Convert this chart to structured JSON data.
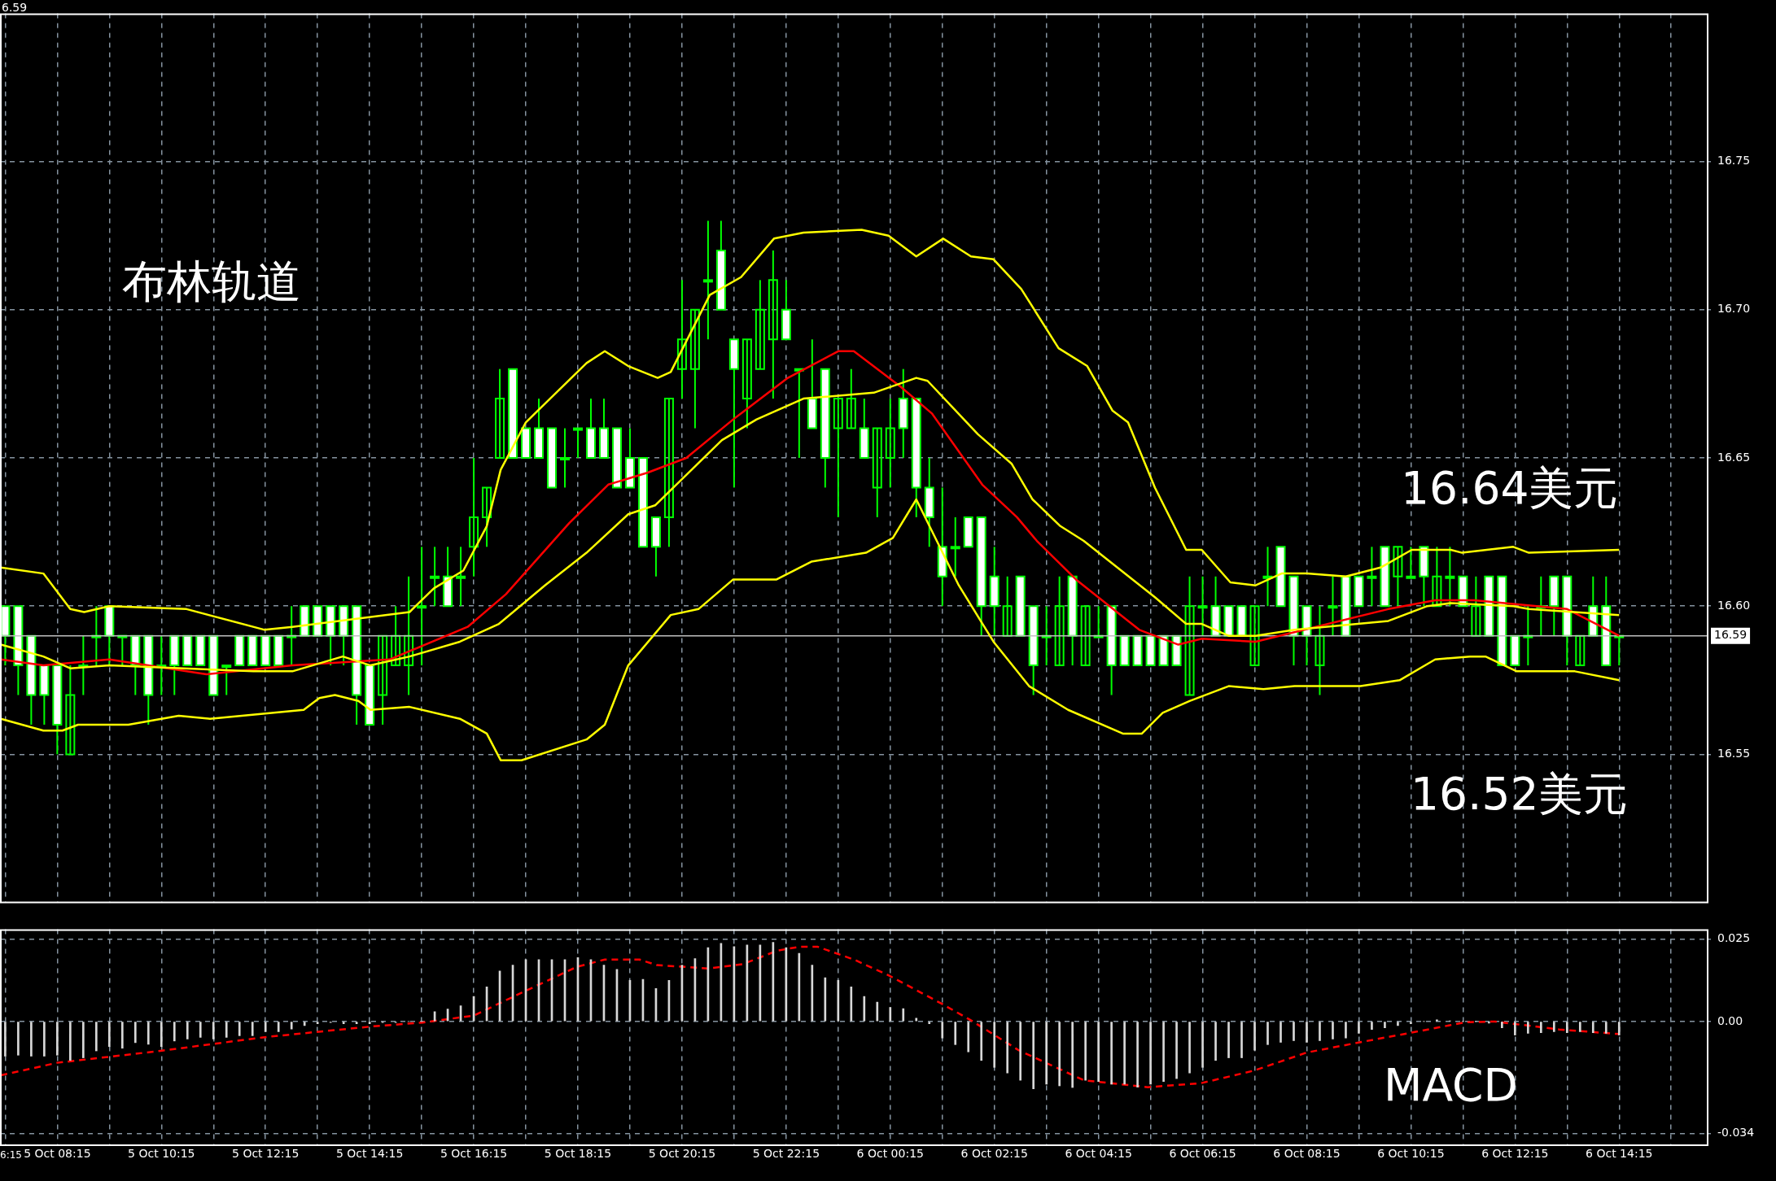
{
  "chart_data": [
    {
      "type": "candlestick",
      "color": "#00ff00",
      "colors": [
        "#ffffff",
        "#ffffff",
        "#ffffff",
        "#ffffff",
        "#ffffff",
        "#00ff00",
        "#00ff00",
        "#00ff00",
        "#ffffff",
        "#00ff00",
        "#ffffff",
        "#ffffff",
        "#00ff00",
        "#ffffff",
        "#ffffff",
        "#ffffff",
        "#ffffff",
        "#00ff00",
        "#ffffff",
        "#ffffff",
        "#ffffff",
        "#ffffff",
        "#00ff00",
        "#ffffff",
        "#ffffff",
        "#ffffff",
        "#ffffff",
        "#ffffff",
        "#ffffff",
        "#00ff00",
        "#00ff00",
        "#00ff00",
        "#00ff00",
        "#00ff00",
        "#ffffff",
        "#00ff00",
        "#00ff00",
        "#00ff00",
        "#00ff00",
        "#ffffff",
        "#ffffff",
        "#ffffff",
        "#ffffff",
        "#00ff00",
        "#00ff00",
        "#ffffff",
        "#ffffff",
        "#ffffff",
        "#ffffff",
        "#ffffff",
        "#ffffff",
        "#00ff00",
        "#00ff00",
        "#00ff00",
        "#00ff00",
        "#ffffff",
        "#ffffff",
        "#00ff00",
        "#00ff00",
        "#00ff00",
        "#ffffff",
        "#00ff00",
        "#ffffff",
        "#ffffff",
        "#00ff00",
        "#00ff00",
        "#ffffff",
        "#00ff00",
        "#00ff00",
        "#ffffff",
        "#ffffff",
        "#ffffff",
        "#ffffff",
        "#00ff00",
        "#ffffff",
        "#ffffff",
        "#ffffff",
        "#00ff00",
        "#ffffff",
        "#ffffff",
        "#00ff00",
        "#00ff00",
        "#ffffff",
        "#00ff00",
        "#00ff00",
        "#ffffff",
        "#ffffff",
        "#ffffff",
        "#ffffff",
        "#ffffff",
        "#ffffff",
        "#00ff00",
        "#00ff00",
        "#ffffff",
        "#ffffff",
        "#ffffff",
        "#00ff00",
        "#00ff00",
        "#ffffff",
        "#ffffff",
        "#ffffff",
        "#00ff00",
        "#00ff00",
        "#ffffff",
        "#ffffff",
        "#00ff00",
        "#ffffff",
        "#00ff00",
        "#00ff00",
        "#ffffff",
        "#00ff00",
        "#00ff00",
        "#ffffff",
        "#00ff00",
        "#ffffff",
        "#ffffff",
        "#ffffff",
        "#00ff00",
        "#00ff00",
        "#ffffff",
        "#ffffff",
        "#00ff00",
        "#ffffff",
        "#ffffff",
        "#00ff00"
      ],
      "tick_labels": "y",
      "grid": true,
      "xlim": [
        "--10-05T07:09",
        "--10-06T15:57"
      ],
      "xticks": [
        {
          "value": "--10-05T07:15",
          "label": null
        },
        {
          "value": "--10-05T08:15",
          "label": null
        },
        {
          "value": "--10-05T09:15",
          "label": null
        },
        {
          "value": "--10-05T10:15",
          "label": null
        },
        {
          "value": "--10-05T11:15",
          "label": null
        },
        {
          "value": "--10-05T12:15",
          "label": null
        },
        {
          "value": "--10-05T13:15",
          "label": null
        },
        {
          "value": "--10-05T14:15",
          "label": null
        },
        {
          "value": "--10-05T15:15",
          "label": null
        },
        {
          "value": "--10-05T16:15",
          "label": null
        },
        {
          "value": "--10-05T17:15",
          "label": null
        },
        {
          "value": "--10-05T18:15",
          "label": null
        },
        {
          "value": "--10-05T19:15",
          "label": null
        },
        {
          "value": "--10-05T20:15",
          "label": null
        },
        {
          "value": "--10-05T21:15",
          "label": null
        },
        {
          "value": "--10-05T22:15",
          "label": null
        },
        {
          "value": "--10-05T23:15",
          "label": null
        },
        {
          "value": "--10-06T00:15",
          "label": null
        },
        {
          "value": "--10-06T01:15",
          "label": null
        },
        {
          "value": "--10-06T02:15",
          "label": null
        },
        {
          "value": "--10-06T03:15",
          "label": null
        },
        {
          "value": "--10-06T04:15",
          "label": null
        },
        {
          "value": "--10-06T05:15",
          "label": null
        },
        {
          "value": "--10-06T06:15",
          "label": null
        },
        {
          "value": "--10-06T07:15",
          "label": null
        },
        {
          "value": "--10-06T08:15",
          "label": null
        },
        {
          "value": "--10-06T09:15",
          "label": null
        },
        {
          "value": "--10-06T10:15",
          "label": null
        },
        {
          "value": "--10-06T11:15",
          "label": null
        },
        {
          "value": "--10-06T12:15",
          "label": null
        },
        {
          "value": "--10-06T13:15",
          "label": null
        },
        {
          "value": "--10-06T14:15",
          "label": null
        },
        {
          "value": "--10-06T15:15",
          "label": null
        }
      ],
      "ylim": [
        16.5,
        16.8
      ],
      "yticks": [
        16.55,
        {
          "value": 16.6,
          "label": "16.60"
        },
        16.65,
        {
          "value": 16.7,
          "label": "16.70"
        },
        16.75
      ],
      "ref_lines": [
        {
          "axis": "y",
          "value": 16.59,
          "label": "16.59",
          "color": "#c0c0c0"
        }
      ],
      "annotations": [
        "布林轨道",
        "16.64美元",
        "16.52美元",
        "6.59"
      ],
      "x": [
        "--10-05T07:15",
        "--10-05T07:30",
        "--10-05T07:45",
        "--10-05T08:00",
        "--10-05T08:15",
        "--10-05T08:30",
        "--10-05T08:45",
        "--10-05T09:00",
        "--10-05T09:15",
        "--10-05T09:30",
        "--10-05T09:45",
        "--10-05T10:00",
        "--10-05T10:15",
        "--10-05T10:30",
        "--10-05T10:45",
        "--10-05T11:00",
        "--10-05T11:15",
        "--10-05T11:30",
        "--10-05T11:45",
        "--10-05T12:00",
        "--10-05T12:15",
        "--10-05T12:30",
        "--10-05T12:45",
        "--10-05T13:00",
        "--10-05T13:15",
        "--10-05T13:30",
        "--10-05T13:45",
        "--10-05T14:00",
        "--10-05T14:15",
        "--10-05T14:30",
        "--10-05T14:45",
        "--10-05T15:00",
        "--10-05T15:15",
        "--10-05T15:30",
        "--10-05T15:45",
        "--10-05T16:00",
        "--10-05T16:15",
        "--10-05T16:30",
        "--10-05T16:45",
        "--10-05T17:00",
        "--10-05T17:15",
        "--10-05T17:30",
        "--10-05T17:45",
        "--10-05T18:00",
        "--10-05T18:15",
        "--10-05T18:30",
        "--10-05T18:45",
        "--10-05T19:00",
        "--10-05T19:15",
        "--10-05T19:30",
        "--10-05T19:45",
        "--10-05T20:00",
        "--10-05T20:15",
        "--10-05T20:30",
        "--10-05T20:45",
        "--10-05T21:00",
        "--10-05T21:15",
        "--10-05T21:30",
        "--10-05T21:45",
        "--10-05T22:00",
        "--10-05T22:15",
        "--10-05T22:30",
        "--10-05T22:45",
        "--10-05T23:00",
        "--10-05T23:15",
        "--10-05T23:30",
        "--10-05T23:45",
        "--10-06T00:00",
        "--10-06T00:15",
        "--10-06T00:30",
        "--10-06T00:45",
        "--10-06T01:00",
        "--10-06T01:15",
        "--10-06T01:30",
        "--10-06T01:45",
        "--10-06T02:00",
        "--10-06T02:15",
        "--10-06T02:30",
        "--10-06T02:45",
        "--10-06T03:00",
        "--10-06T03:15",
        "--10-06T03:30",
        "--10-06T03:45",
        "--10-06T04:00",
        "--10-06T04:15",
        "--10-06T04:30",
        "--10-06T04:45",
        "--10-06T05:00",
        "--10-06T05:15",
        "--10-06T05:30",
        "--10-06T05:45",
        "--10-06T06:00",
        "--10-06T06:15",
        "--10-06T06:30",
        "--10-06T06:45",
        "--10-06T07:00",
        "--10-06T07:15",
        "--10-06T07:30",
        "--10-06T07:45",
        "--10-06T08:00",
        "--10-06T08:15",
        "--10-06T08:30",
        "--10-06T08:45",
        "--10-06T09:00",
        "--10-06T09:15",
        "--10-06T09:30",
        "--10-06T09:45",
        "--10-06T10:00",
        "--10-06T10:15",
        "--10-06T10:30",
        "--10-06T10:45",
        "--10-06T11:00",
        "--10-06T11:15",
        "--10-06T11:30",
        "--10-06T11:45",
        "--10-06T12:00",
        "--10-06T12:15",
        "--10-06T12:30",
        "--10-06T12:45",
        "--10-06T13:00",
        "--10-06T13:15",
        "--10-06T13:30",
        "--10-06T13:45",
        "--10-06T14:00",
        "--10-06T14:15"
      ],
      "ohlc": [
        [
          16.6,
          16.6,
          16.58,
          16.59
        ],
        [
          16.6,
          16.6,
          16.57,
          16.58
        ],
        [
          16.59,
          16.59,
          16.56,
          16.57
        ],
        [
          16.58,
          16.58,
          16.56,
          16.57
        ],
        [
          16.58,
          16.58,
          16.55,
          16.56
        ],
        [
          16.55,
          16.58,
          16.55,
          16.57
        ],
        [
          16.58,
          16.59,
          16.57,
          16.58
        ],
        [
          16.59,
          16.6,
          16.58,
          16.59
        ],
        [
          16.6,
          16.6,
          16.58,
          16.59
        ],
        [
          16.59,
          16.59,
          16.58,
          16.59
        ],
        [
          16.59,
          16.59,
          16.57,
          16.58
        ],
        [
          16.59,
          16.59,
          16.56,
          16.57
        ],
        [
          16.58,
          16.59,
          16.57,
          16.58
        ],
        [
          16.59,
          16.59,
          16.57,
          16.58
        ],
        [
          16.59,
          16.59,
          16.58,
          16.58
        ],
        [
          16.59,
          16.59,
          16.58,
          16.58
        ],
        [
          16.59,
          16.59,
          16.57,
          16.57
        ],
        [
          16.58,
          16.58,
          16.57,
          16.58
        ],
        [
          16.59,
          16.59,
          16.58,
          16.58
        ],
        [
          16.59,
          16.59,
          16.58,
          16.58
        ],
        [
          16.59,
          16.59,
          16.58,
          16.58
        ],
        [
          16.59,
          16.59,
          16.58,
          16.58
        ],
        [
          16.59,
          16.6,
          16.58,
          16.59
        ],
        [
          16.6,
          16.6,
          16.59,
          16.59
        ],
        [
          16.6,
          16.6,
          16.59,
          16.59
        ],
        [
          16.6,
          16.6,
          16.58,
          16.59
        ],
        [
          16.6,
          16.6,
          16.58,
          16.59
        ],
        [
          16.6,
          16.6,
          16.56,
          16.57
        ],
        [
          16.58,
          16.58,
          16.56,
          16.56
        ],
        [
          16.57,
          16.59,
          16.56,
          16.59
        ],
        [
          16.58,
          16.6,
          16.58,
          16.59
        ],
        [
          16.58,
          16.61,
          16.57,
          16.59
        ],
        [
          16.6,
          16.62,
          16.58,
          16.6
        ],
        [
          16.61,
          16.62,
          16.6,
          16.61
        ],
        [
          16.61,
          16.62,
          16.6,
          16.6
        ],
        [
          16.61,
          16.62,
          16.6,
          16.61
        ],
        [
          16.62,
          16.65,
          16.61,
          16.63
        ],
        [
          16.63,
          16.64,
          16.62,
          16.64
        ],
        [
          16.65,
          16.68,
          16.65,
          16.67
        ],
        [
          16.68,
          16.68,
          16.65,
          16.65
        ],
        [
          16.66,
          16.66,
          16.65,
          16.65
        ],
        [
          16.66,
          16.67,
          16.65,
          16.65
        ],
        [
          16.66,
          16.66,
          16.64,
          16.64
        ],
        [
          16.65,
          16.66,
          16.64,
          16.65
        ],
        [
          16.66,
          16.66,
          16.65,
          16.66
        ],
        [
          16.66,
          16.67,
          16.65,
          16.65
        ],
        [
          16.66,
          16.67,
          16.65,
          16.65
        ],
        [
          16.66,
          16.66,
          16.64,
          16.64
        ],
        [
          16.65,
          16.66,
          16.64,
          16.64
        ],
        [
          16.65,
          16.65,
          16.62,
          16.62
        ],
        [
          16.63,
          16.63,
          16.61,
          16.62
        ],
        [
          16.63,
          16.67,
          16.62,
          16.67
        ],
        [
          16.68,
          16.71,
          16.67,
          16.69
        ],
        [
          16.68,
          16.7,
          16.66,
          16.7
        ],
        [
          16.71,
          16.73,
          16.69,
          16.71
        ],
        [
          16.72,
          16.73,
          16.7,
          16.7
        ],
        [
          16.69,
          16.69,
          16.64,
          16.68
        ],
        [
          16.67,
          16.69,
          16.66,
          16.69
        ],
        [
          16.68,
          16.71,
          16.68,
          16.7
        ],
        [
          16.69,
          16.72,
          16.67,
          16.71
        ],
        [
          16.7,
          16.71,
          16.69,
          16.69
        ],
        [
          16.68,
          16.68,
          16.65,
          16.68
        ],
        [
          16.67,
          16.69,
          16.66,
          16.66
        ],
        [
          16.68,
          16.68,
          16.64,
          16.65
        ],
        [
          16.66,
          16.67,
          16.63,
          16.67
        ],
        [
          16.66,
          16.68,
          16.66,
          16.67
        ],
        [
          16.66,
          16.67,
          16.65,
          16.65
        ],
        [
          16.64,
          16.66,
          16.63,
          16.66
        ],
        [
          16.65,
          16.67,
          16.64,
          16.66
        ],
        [
          16.67,
          16.68,
          16.65,
          16.66
        ],
        [
          16.67,
          16.67,
          16.63,
          16.64
        ],
        [
          16.64,
          16.65,
          16.62,
          16.63
        ],
        [
          16.62,
          16.64,
          16.6,
          16.61
        ],
        [
          16.62,
          16.63,
          16.61,
          16.62
        ],
        [
          16.63,
          16.63,
          16.62,
          16.62
        ],
        [
          16.63,
          16.63,
          16.59,
          16.6
        ],
        [
          16.61,
          16.62,
          16.59,
          16.6
        ],
        [
          16.59,
          16.61,
          16.59,
          16.6
        ],
        [
          16.61,
          16.61,
          16.59,
          16.59
        ],
        [
          16.6,
          16.6,
          16.57,
          16.58
        ],
        [
          16.59,
          16.6,
          16.58,
          16.59
        ],
        [
          16.58,
          16.61,
          16.58,
          16.6
        ],
        [
          16.61,
          16.61,
          16.58,
          16.59
        ],
        [
          16.58,
          16.6,
          16.58,
          16.6
        ],
        [
          16.59,
          16.6,
          16.59,
          16.59
        ],
        [
          16.6,
          16.6,
          16.57,
          16.58
        ],
        [
          16.59,
          16.59,
          16.58,
          16.58
        ],
        [
          16.59,
          16.59,
          16.58,
          16.58
        ],
        [
          16.59,
          16.59,
          16.58,
          16.58
        ],
        [
          16.59,
          16.59,
          16.58,
          16.58
        ],
        [
          16.59,
          16.59,
          16.58,
          16.58
        ],
        [
          16.57,
          16.61,
          16.57,
          16.6
        ],
        [
          16.6,
          16.61,
          16.59,
          16.6
        ],
        [
          16.6,
          16.61,
          16.59,
          16.59
        ],
        [
          16.6,
          16.6,
          16.59,
          16.59
        ],
        [
          16.6,
          16.6,
          16.59,
          16.59
        ],
        [
          16.58,
          16.6,
          16.58,
          16.6
        ],
        [
          16.61,
          16.62,
          16.6,
          16.61
        ],
        [
          16.62,
          16.62,
          16.6,
          16.6
        ],
        [
          16.61,
          16.61,
          16.58,
          16.59
        ],
        [
          16.6,
          16.6,
          16.58,
          16.59
        ],
        [
          16.58,
          16.6,
          16.57,
          16.59
        ],
        [
          16.6,
          16.61,
          16.59,
          16.6
        ],
        [
          16.61,
          16.61,
          16.59,
          16.59
        ],
        [
          16.61,
          16.61,
          16.6,
          16.6
        ],
        [
          16.61,
          16.62,
          16.6,
          16.61
        ],
        [
          16.62,
          16.62,
          16.6,
          16.6
        ],
        [
          16.61,
          16.62,
          16.6,
          16.62
        ],
        [
          16.61,
          16.62,
          16.61,
          16.61
        ],
        [
          16.62,
          16.62,
          16.6,
          16.61
        ],
        [
          16.6,
          16.62,
          16.6,
          16.61
        ],
        [
          16.61,
          16.62,
          16.6,
          16.61
        ],
        [
          16.61,
          16.61,
          16.6,
          16.6
        ],
        [
          16.59,
          16.61,
          16.59,
          16.6
        ],
        [
          16.61,
          16.61,
          16.59,
          16.59
        ],
        [
          16.61,
          16.61,
          16.58,
          16.58
        ],
        [
          16.59,
          16.59,
          16.58,
          16.58
        ],
        [
          16.59,
          16.6,
          16.58,
          16.59
        ],
        [
          16.6,
          16.61,
          16.59,
          16.6
        ],
        [
          16.61,
          16.61,
          16.59,
          16.6
        ],
        [
          16.61,
          16.61,
          16.58,
          16.59
        ],
        [
          16.58,
          16.59,
          16.58,
          16.59
        ],
        [
          16.6,
          16.61,
          16.59,
          16.59
        ],
        [
          16.6,
          16.61,
          16.58,
          16.58
        ],
        [
          16.59,
          16.59,
          16.58,
          16.59
        ]
      ],
      "series": [
        {
          "type": "line",
          "color": "#ffff00",
          "x": [
            "--10-05T07:10",
            "--10-05T07:59",
            "--10-05T08:30",
            "--10-05T08:46",
            "--10-05T09:15",
            "--10-05T10:44",
            "--10-05T12:14",
            "--10-05T12:46",
            "--10-05T15:01",
            "--10-05T15:29",
            "--10-05T16:03",
            "--10-05T16:30",
            "--10-05T16:46",
            "--10-05T17:15",
            "--10-05T18:25",
            "--10-05T18:46",
            "--10-05T19:13",
            "--10-05T19:47",
            "--10-05T20:02",
            "--10-05T20:47",
            "--10-05T21:23",
            "--10-05T22:01",
            "--10-05T22:35",
            "--10-05T23:42",
            "--10-06T00:13",
            "--10-06T00:45",
            "--10-06T01:16",
            "--10-06T01:48",
            "--10-06T02:14",
            "--10-06T02:46",
            "--10-06T03:29",
            "--10-06T04:02",
            "--10-06T04:31",
            "--10-06T04:49",
            "--10-06T05:20",
            "--10-06T05:56",
            "--10-06T06:14",
            "--10-06T06:47",
            "--10-06T07:16",
            "--10-06T07:46",
            "--10-06T08:15",
            "--10-06T09:00",
            "--10-06T09:40",
            "--10-06T10:16",
            "--10-06T11:01",
            "--10-06T11:14",
            "--10-06T12:13",
            "--10-06T12:31",
            "--10-06T14:15"
          ],
          "values": [
            16.613,
            16.611,
            16.599,
            16.598,
            16.6,
            16.599,
            16.592,
            16.593,
            16.598,
            16.606,
            16.612,
            16.627,
            16.646,
            16.662,
            16.682,
            16.686,
            16.681,
            16.677,
            16.679,
            16.705,
            16.711,
            16.724,
            16.726,
            16.727,
            16.725,
            16.718,
            16.724,
            16.718,
            16.717,
            16.707,
            16.687,
            16.681,
            16.666,
            16.662,
            16.64,
            16.619,
            16.619,
            16.608,
            16.607,
            16.611,
            16.611,
            16.61,
            16.613,
            16.619,
            16.619,
            16.618,
            16.62,
            16.618,
            16.619
          ]
        },
        {
          "type": "line",
          "color": "#ffff00",
          "x": [
            "--10-05T07:10",
            "--10-05T07:59",
            "--10-05T08:30",
            "--10-05T09:15",
            "--10-05T12:01",
            "--10-05T12:46",
            "--10-05T13:44",
            "--10-05T14:16",
            "--10-05T15:01",
            "--10-05T15:59",
            "--10-05T16:44",
            "--10-05T17:37",
            "--10-05T18:25",
            "--10-05T19:13",
            "--10-05T19:44",
            "--10-05T21:01",
            "--10-05T21:41",
            "--10-05T22:35",
            "--10-05T23:56",
            "--10-06T00:45",
            "--10-06T00:58",
            "--10-06T01:56",
            "--10-06T02:35",
            "--10-06T02:59",
            "--10-06T03:31",
            "--10-06T03:58",
            "--10-06T05:20",
            "--10-06T05:56",
            "--10-06T06:14",
            "--10-06T06:45",
            "--10-06T07:16",
            "--10-06T08:01",
            "--10-06T09:49",
            "--10-06T10:34",
            "--10-06T11:01",
            "--10-06T12:13",
            "--10-06T12:31",
            "--10-06T14:15"
          ],
          "values": [
            16.587,
            16.583,
            16.579,
            16.58,
            16.578,
            16.578,
            16.583,
            16.58,
            16.583,
            16.588,
            16.594,
            16.607,
            16.618,
            16.631,
            16.634,
            16.656,
            16.663,
            16.67,
            16.672,
            16.677,
            16.676,
            16.658,
            16.648,
            16.636,
            16.627,
            16.622,
            16.603,
            16.594,
            16.594,
            16.59,
            16.59,
            16.592,
            16.595,
            16.6,
            16.601,
            16.6,
            16.599,
            16.597
          ]
        },
        {
          "type": "line",
          "color": "#ffff00",
          "x": [
            "--10-05T07:10",
            "--10-05T07:59",
            "--10-05T08:21",
            "--10-05T08:39",
            "--10-05T09:37",
            "--10-05T10:35",
            "--10-05T11:11",
            "--10-05T12:59",
            "--10-05T13:17",
            "--10-05T13:35",
            "--10-05T14:02",
            "--10-05T14:16",
            "--10-05T15:01",
            "--10-05T15:59",
            "--10-05T16:30",
            "--10-05T16:46",
            "--10-05T17:10",
            "--10-05T18:25",
            "--10-05T18:46",
            "--10-05T19:13",
            "--10-05T20:02",
            "--10-05T20:34",
            "--10-05T21:14",
            "--10-05T22:04",
            "--10-05T22:44",
            "--10-05T23:47",
            "--10-06T00:18",
            "--10-06T00:45",
            "--10-06T01:34",
            "--10-06T02:14",
            "--10-06T02:55",
            "--10-06T03:40",
            "--10-06T04:43",
            "--10-06T05:05",
            "--10-06T05:29",
            "--10-06T06:00",
            "--10-06T06:45",
            "--10-06T07:25",
            "--10-06T08:01",
            "--10-06T09:17",
            "--10-06T10:02",
            "--10-06T10:43",
            "--10-06T11:23",
            "--10-06T11:41",
            "--10-06T12:17",
            "--10-06T12:57",
            "--10-06T13:24",
            "--10-06T14:15"
          ],
          "values": [
            16.562,
            16.558,
            16.558,
            16.56,
            16.56,
            16.563,
            16.562,
            16.565,
            16.569,
            16.57,
            16.568,
            16.565,
            16.566,
            16.562,
            16.557,
            16.548,
            16.548,
            16.555,
            16.56,
            16.58,
            16.597,
            16.599,
            16.609,
            16.609,
            16.615,
            16.618,
            16.623,
            16.636,
            16.607,
            16.588,
            16.573,
            16.565,
            16.557,
            16.557,
            16.564,
            16.568,
            16.573,
            16.572,
            16.573,
            16.573,
            16.575,
            16.582,
            16.583,
            16.583,
            16.578,
            16.578,
            16.578,
            16.575
          ]
        },
        {
          "type": "line",
          "color": "#ff0000",
          "x": [
            "--10-05T07:10",
            "--10-05T07:59",
            "--10-05T09:15",
            "--10-05T11:07",
            "--10-05T12:46",
            "--10-05T14:38",
            "--10-05T16:08",
            "--10-05T16:52",
            "--10-05T18:05",
            "--10-05T18:50",
            "--10-05T19:35",
            "--10-05T20:20",
            "--10-05T21:14",
            "--10-05T22:17",
            "--10-05T23:15",
            "--10-05T23:33",
            "--10-06T00:27",
            "--10-06T01:03",
            "--10-06T02:01",
            "--10-06T02:41",
            "--10-06T03:04",
            "--10-06T03:49",
            "--10-06T05:02",
            "--10-06T05:47",
            "--10-06T06:14",
            "--10-06T07:16",
            "--10-06T09:49",
            "--10-06T10:43",
            "--10-06T11:28",
            "--10-06T13:15",
            "--10-06T14:15"
          ],
          "values": [
            16.582,
            16.58,
            16.582,
            16.577,
            16.58,
            16.582,
            16.593,
            16.604,
            16.628,
            16.641,
            16.645,
            16.65,
            16.663,
            16.677,
            16.686,
            16.686,
            16.674,
            16.665,
            16.641,
            16.63,
            16.622,
            16.609,
            16.592,
            16.587,
            16.589,
            16.588,
            16.599,
            16.602,
            16.602,
            16.599,
            16.59
          ]
        }
      ]
    },
    {
      "type": "bar",
      "grid": true,
      "xlim": [
        "--10-05T07:09",
        "--10-06T15:57"
      ],
      "xticks": [
        {
          "value": "--10-05T07:15",
          "label": null
        },
        {
          "value": "--10-05T08:15",
          "label": "5 Oct 08:15"
        },
        {
          "value": "--10-05T09:15",
          "label": null
        },
        {
          "value": "--10-05T10:15",
          "label": "5 Oct 10:15"
        },
        {
          "value": "--10-05T11:15",
          "label": null
        },
        {
          "value": "--10-05T12:15",
          "label": "5 Oct 12:15"
        },
        {
          "value": "--10-05T13:15",
          "label": null
        },
        {
          "value": "--10-05T14:15",
          "label": "5 Oct 14:15"
        },
        {
          "value": "--10-05T15:15",
          "label": null
        },
        {
          "value": "--10-05T16:15",
          "label": "5 Oct 16:15"
        },
        {
          "value": "--10-05T17:15",
          "label": null
        },
        {
          "value": "--10-05T18:15",
          "label": "5 Oct 18:15"
        },
        {
          "value": "--10-05T19:15",
          "label": null
        },
        {
          "value": "--10-05T20:15",
          "label": "5 Oct 20:15"
        },
        {
          "value": "--10-05T21:15",
          "label": null
        },
        {
          "value": "--10-05T22:15",
          "label": "5 Oct 22:15"
        },
        {
          "value": "--10-05T23:15",
          "label": null
        },
        {
          "value": "--10-06T00:15",
          "label": "6 Oct 00:15"
        },
        {
          "value": "--10-06T01:15",
          "label": null
        },
        {
          "value": "--10-06T02:15",
          "label": "6 Oct 02:15"
        },
        {
          "value": "--10-06T03:15",
          "label": null
        },
        {
          "value": "--10-06T04:15",
          "label": "6 Oct 04:15"
        },
        {
          "value": "--10-06T05:15",
          "label": null
        },
        {
          "value": "--10-06T06:15",
          "label": "6 Oct 06:15"
        },
        {
          "value": "--10-06T07:15",
          "label": null
        },
        {
          "value": "--10-06T08:15",
          "label": "6 Oct 08:15"
        },
        {
          "value": "--10-06T09:15",
          "label": null
        },
        {
          "value": "--10-06T10:15",
          "label": "6 Oct 10:15"
        },
        {
          "value": "--10-06T11:15",
          "label": null
        },
        {
          "value": "--10-06T12:15",
          "label": "6 Oct 12:15"
        },
        {
          "value": "--10-06T13:15",
          "label": null
        },
        {
          "value": "--10-06T14:15",
          "label": "6 Oct 14:15"
        },
        {
          "value": "--10-06T15:15",
          "label": null
        }
      ],
      "ylim": [
        -0.0375,
        0.028
      ],
      "yticks": [
        0.025,
        {
          "value": 0,
          "label": "0.00"
        },
        -0.034
      ],
      "annotations": [
        "MACD",
        "6:15"
      ],
      "x": [
        "--10-05T07:15",
        "--10-05T07:30",
        "--10-05T07:45",
        "--10-05T08:00",
        "--10-05T08:15",
        "--10-05T08:30",
        "--10-05T08:45",
        "--10-05T09:00",
        "--10-05T09:15",
        "--10-05T09:30",
        "--10-05T09:45",
        "--10-05T10:00",
        "--10-05T10:15",
        "--10-05T10:30",
        "--10-05T10:45",
        "--10-05T11:00",
        "--10-05T11:15",
        "--10-05T11:30",
        "--10-05T11:45",
        "--10-05T12:00",
        "--10-05T12:15",
        "--10-05T12:30",
        "--10-05T12:45",
        "--10-05T13:00",
        "--10-05T13:15",
        "--10-05T13:30",
        "--10-05T13:45",
        "--10-05T14:00",
        "--10-05T14:15",
        "--10-05T14:30",
        "--10-05T14:45",
        "--10-05T15:00",
        "--10-05T15:15",
        "--10-05T15:30",
        "--10-05T15:45",
        "--10-05T16:00",
        "--10-05T16:15",
        "--10-05T16:30",
        "--10-05T16:45",
        "--10-05T17:00",
        "--10-05T17:15",
        "--10-05T17:30",
        "--10-05T17:45",
        "--10-05T18:00",
        "--10-05T18:15",
        "--10-05T18:30",
        "--10-05T18:45",
        "--10-05T19:00",
        "--10-05T19:15",
        "--10-05T19:30",
        "--10-05T19:45",
        "--10-05T20:00",
        "--10-05T20:15",
        "--10-05T20:30",
        "--10-05T20:45",
        "--10-05T21:00",
        "--10-05T21:15",
        "--10-05T21:30",
        "--10-05T21:45",
        "--10-05T22:00",
        "--10-05T22:15",
        "--10-05T22:30",
        "--10-05T22:45",
        "--10-05T23:00",
        "--10-05T23:15",
        "--10-05T23:30",
        "--10-05T23:45",
        "--10-06T00:00",
        "--10-06T00:15",
        "--10-06T00:30",
        "--10-06T00:45",
        "--10-06T01:00",
        "--10-06T01:15",
        "--10-06T01:30",
        "--10-06T01:45",
        "--10-06T02:00",
        "--10-06T02:15",
        "--10-06T02:30",
        "--10-06T02:45",
        "--10-06T03:00",
        "--10-06T03:15",
        "--10-06T03:30",
        "--10-06T03:45",
        "--10-06T04:00",
        "--10-06T04:15",
        "--10-06T04:30",
        "--10-06T04:45",
        "--10-06T05:00",
        "--10-06T05:15",
        "--10-06T05:30",
        "--10-06T05:45",
        "--10-06T06:00",
        "--10-06T06:15",
        "--10-06T06:30",
        "--10-06T06:45",
        "--10-06T07:00",
        "--10-06T07:15",
        "--10-06T07:30",
        "--10-06T07:45",
        "--10-06T08:00",
        "--10-06T08:15",
        "--10-06T08:30",
        "--10-06T08:45",
        "--10-06T09:00",
        "--10-06T09:15",
        "--10-06T09:30",
        "--10-06T09:45",
        "--10-06T10:00",
        "--10-06T10:15",
        "--10-06T10:30",
        "--10-06T10:45",
        "--10-06T11:00",
        "--10-06T11:15",
        "--10-06T11:30",
        "--10-06T11:45",
        "--10-06T12:00",
        "--10-06T12:15",
        "--10-06T12:30",
        "--10-06T12:45",
        "--10-06T13:00",
        "--10-06T13:15",
        "--10-06T13:30",
        "--10-06T13:45",
        "--10-06T14:00",
        "--10-06T14:15"
      ],
      "series": [
        {
          "type": "bar",
          "color": "#d8d8d8",
          "values": [
            -0.0105,
            -0.0102,
            -0.0105,
            -0.0105,
            -0.0102,
            -0.0118,
            -0.011,
            -0.0089,
            -0.0076,
            -0.0081,
            -0.0064,
            -0.0069,
            -0.0076,
            -0.0059,
            -0.0053,
            -0.0048,
            -0.0053,
            -0.0048,
            -0.0043,
            -0.0043,
            -0.0031,
            -0.0031,
            -0.0023,
            -0.0012,
            -0.0007,
            -0.0003,
            -0.0007,
            -0.0007,
            -0.0007,
            -0.0003,
            -0.0003,
            0,
            0,
            0.003,
            0.0038,
            0.0048,
            0.0076,
            0.0105,
            0.0153,
            0.0171,
            0.0188,
            0.0188,
            0.0188,
            0.0188,
            0.0194,
            0.0188,
            0.0171,
            0.0158,
            0.0125,
            0.0128,
            0.01,
            0.0125,
            0.0171,
            0.0191,
            0.0224,
            0.0237,
            0.0227,
            0.0232,
            0.0232,
            0.024,
            0.0224,
            0.0207,
            0.0171,
            0.0133,
            0.0125,
            0.0105,
            0.0076,
            0.0059,
            0.0043,
            0.0039,
            0.001,
            -0.0007,
            -0.005,
            -0.007,
            -0.0092,
            -0.0118,
            -0.0139,
            -0.0156,
            -0.0178,
            -0.0204,
            -0.019,
            -0.0195,
            -0.02,
            -0.0178,
            -0.0182,
            -0.019,
            -0.019,
            -0.0199,
            -0.019,
            -0.0182,
            -0.0173,
            -0.0156,
            -0.0139,
            -0.0118,
            -0.011,
            -0.011,
            -0.0087,
            -0.007,
            -0.0063,
            -0.0058,
            -0.0063,
            -0.0058,
            -0.0053,
            -0.005,
            -0.0036,
            -0.0024,
            -0.0019,
            -0.0012,
            -0.0007,
            0,
            0.0005,
            0.0002,
            0,
            0,
            -0.0005,
            -0.0019,
            -0.0041,
            -0.0036,
            -0.0034,
            -0.0031,
            -0.0034,
            -0.0031,
            -0.0034,
            -0.0036,
            -0.0041
          ]
        },
        {
          "type": "line",
          "color": "#ff0000",
          "line_style": "dashed",
          "x": [
            "--10-05T07:10",
            "--10-05T08:15",
            "--10-05T10:14",
            "--10-05T12:12",
            "--10-05T14:17",
            "--10-05T15:16",
            "--10-05T16:15",
            "--10-05T17:14",
            "--10-05T18:14",
            "--10-05T18:46",
            "--10-05T19:26",
            "--10-05T19:46",
            "--10-05T20:45",
            "--10-05T21:25",
            "--10-05T22:05",
            "--10-05T22:31",
            "--10-05T22:51",
            "--10-05T23:34",
            "--10-06T00:14",
            "--10-06T01:15",
            "--10-06T01:49",
            "--10-06T02:43",
            "--10-06T03:58",
            "--10-06T05:12",
            "--10-06T06:13",
            "--10-06T07:14",
            "--10-06T08:15",
            "--10-06T09:16",
            "--10-06T10:17",
            "--10-06T11:18",
            "--10-06T11:52",
            "--10-06T13:06",
            "--10-06T14:15"
          ],
          "values": [
            -0.0163,
            -0.0125,
            -0.0089,
            -0.0048,
            -0.0015,
            -0.0003,
            0.0018,
            0.0092,
            0.0166,
            0.0188,
            0.0188,
            0.0171,
            0.0161,
            0.0174,
            0.0215,
            0.0227,
            0.0227,
            0.0187,
            0.0139,
            0.0053,
            0.0002,
            -0.0087,
            -0.0178,
            -0.0199,
            -0.0187,
            -0.0149,
            -0.0094,
            -0.0063,
            -0.0033,
            -0.0002,
            0,
            -0.0024,
            -0.0038
          ]
        }
      ]
    }
  ]
}
